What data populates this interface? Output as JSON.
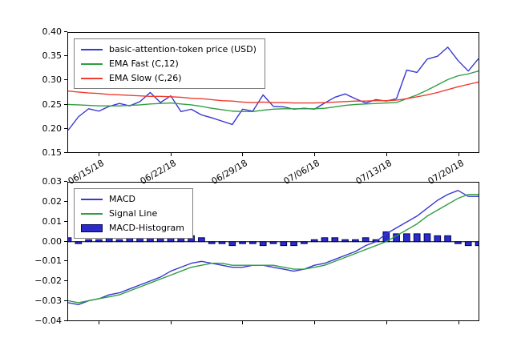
{
  "figure": {
    "background": "#ffffff",
    "spine_color": "#000000",
    "text_color": "#000000"
  },
  "chart_data": [
    {
      "type": "line",
      "panel": "price",
      "title": "",
      "ylabel": "",
      "ylim": [
        0.15,
        0.4
      ],
      "yticks": [
        0.4,
        0.35,
        0.3,
        0.25,
        0.2,
        0.15
      ],
      "ytick_labels": [
        "0.40",
        "0.35",
        "0.30",
        "0.25",
        "0.20",
        "0.15"
      ],
      "xtick_indices": [
        3,
        10,
        17,
        24,
        31,
        38
      ],
      "xtick_labels": [
        "06/15/18",
        "06/22/18",
        "06/29/18",
        "07/06/18",
        "07/13/18",
        "07/20/18"
      ],
      "legend_position": "upper-left",
      "grid": false,
      "series": [
        {
          "name": "basic-attention-token price (USD)",
          "color": "#3838d2",
          "values": [
            0.196,
            0.224,
            0.241,
            0.236,
            0.246,
            0.252,
            0.247,
            0.256,
            0.275,
            0.254,
            0.268,
            0.235,
            0.24,
            0.228,
            0.222,
            0.215,
            0.208,
            0.24,
            0.236,
            0.27,
            0.246,
            0.245,
            0.24,
            0.242,
            0.24,
            0.253,
            0.265,
            0.272,
            0.262,
            0.253,
            0.26,
            0.257,
            0.262,
            0.322,
            0.317,
            0.345,
            0.351,
            0.37,
            0.342,
            0.32,
            0.346
          ]
        },
        {
          "name": "EMA Fast (C,12)",
          "color": "#2f9e41",
          "values": [
            0.25,
            0.249,
            0.248,
            0.247,
            0.247,
            0.247,
            0.248,
            0.249,
            0.251,
            0.252,
            0.253,
            0.251,
            0.249,
            0.246,
            0.242,
            0.239,
            0.236,
            0.235,
            0.235,
            0.238,
            0.24,
            0.241,
            0.241,
            0.241,
            0.241,
            0.242,
            0.245,
            0.248,
            0.25,
            0.251,
            0.252,
            0.253,
            0.254,
            0.262,
            0.27,
            0.28,
            0.291,
            0.302,
            0.31,
            0.314,
            0.32
          ]
        },
        {
          "name": "EMA Slow (C,26)",
          "color": "#f03b2e",
          "values": [
            0.278,
            0.276,
            0.274,
            0.273,
            0.271,
            0.27,
            0.269,
            0.268,
            0.267,
            0.267,
            0.266,
            0.265,
            0.263,
            0.262,
            0.26,
            0.258,
            0.257,
            0.255,
            0.254,
            0.255,
            0.254,
            0.254,
            0.253,
            0.253,
            0.253,
            0.254,
            0.255,
            0.256,
            0.257,
            0.257,
            0.258,
            0.258,
            0.259,
            0.262,
            0.266,
            0.27,
            0.275,
            0.281,
            0.287,
            0.292,
            0.297
          ]
        }
      ]
    },
    {
      "type": "line+bar",
      "panel": "macd",
      "title": "",
      "ylabel": "",
      "ylim": [
        -0.04,
        0.03
      ],
      "yticks": [
        0.03,
        0.02,
        0.01,
        0.0,
        -0.01,
        -0.02,
        -0.03,
        -0.04
      ],
      "ytick_labels": [
        "0.03",
        "0.02",
        "0.01",
        "0.00",
        "−0.01",
        "−0.02",
        "−0.03",
        "−0.04"
      ],
      "xtick_indices": [
        3,
        10,
        17,
        24,
        31,
        38
      ],
      "xtick_labels": [],
      "legend_position": "upper-left",
      "grid": false,
      "zero_line": true,
      "series": [
        {
          "name": "MACD",
          "color": "#3838d2",
          "values": [
            -0.031,
            -0.032,
            -0.03,
            -0.029,
            -0.027,
            -0.026,
            -0.024,
            -0.022,
            -0.02,
            -0.018,
            -0.015,
            -0.013,
            -0.011,
            -0.01,
            -0.011,
            -0.012,
            -0.013,
            -0.013,
            -0.012,
            -0.012,
            -0.013,
            -0.014,
            -0.015,
            -0.014,
            -0.012,
            -0.011,
            -0.009,
            -0.007,
            -0.005,
            -0.002,
            0.0,
            0.004,
            0.007,
            0.01,
            0.013,
            0.017,
            0.021,
            0.024,
            0.026,
            0.023,
            0.023
          ]
        },
        {
          "name": "Signal Line",
          "color": "#2f9e41",
          "values": [
            -0.03,
            -0.031,
            -0.03,
            -0.029,
            -0.028,
            -0.027,
            -0.025,
            -0.023,
            -0.021,
            -0.019,
            -0.017,
            -0.015,
            -0.013,
            -0.012,
            -0.011,
            -0.011,
            -0.012,
            -0.012,
            -0.012,
            -0.012,
            -0.012,
            -0.013,
            -0.014,
            -0.014,
            -0.013,
            -0.012,
            -0.01,
            -0.008,
            -0.006,
            -0.004,
            -0.002,
            0.0,
            0.003,
            0.006,
            0.009,
            0.013,
            0.016,
            0.019,
            0.022,
            0.024,
            0.024
          ]
        }
      ],
      "bars": {
        "name": "MACD-Histogram",
        "fill": "#2b2bc8",
        "edge": "#000060",
        "values": [
          0.002,
          -0.001,
          0.001,
          0.001,
          0.002,
          0.001,
          0.002,
          0.002,
          0.003,
          0.002,
          0.003,
          0.004,
          0.003,
          0.002,
          -0.001,
          -0.001,
          -0.002,
          -0.001,
          -0.001,
          -0.002,
          -0.001,
          -0.002,
          -0.002,
          -0.001,
          0.001,
          0.002,
          0.002,
          0.001,
          0.001,
          0.002,
          0.001,
          0.005,
          0.004,
          0.004,
          0.004,
          0.004,
          0.003,
          0.003,
          -0.001,
          -0.002,
          -0.002
        ]
      }
    }
  ]
}
